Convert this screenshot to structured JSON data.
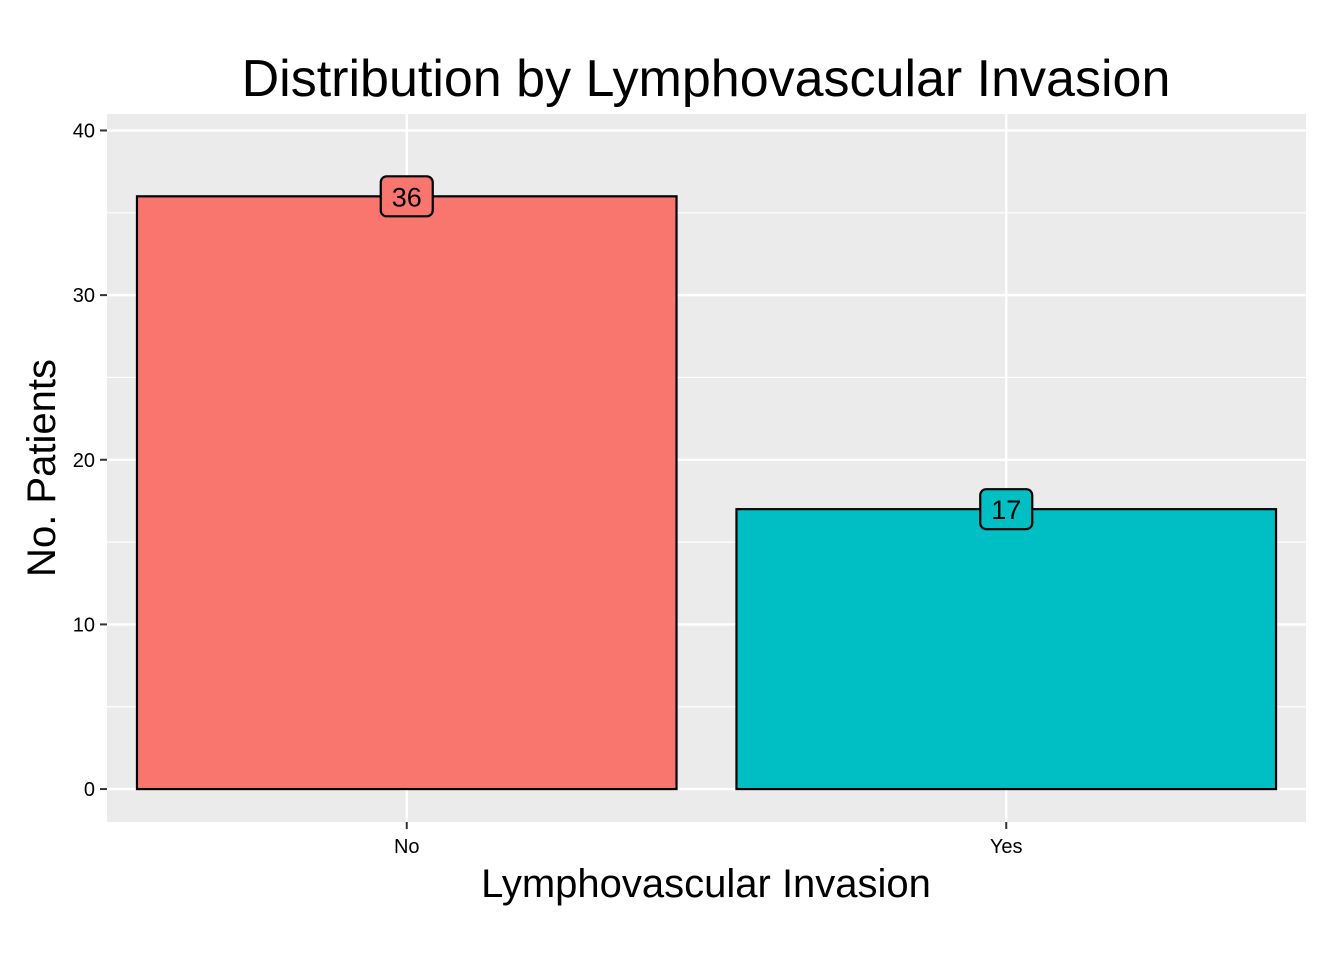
{
  "chart_data": {
    "type": "bar",
    "title": "Distribution by Lymphovascular Invasion",
    "xlabel": "Lymphovascular Invasion",
    "ylabel": "No. Patients",
    "categories": [
      "No",
      "Yes"
    ],
    "values": [
      36,
      17
    ],
    "data_labels": [
      "36",
      "17"
    ],
    "ylim": [
      -2,
      41
    ],
    "yticks": [
      0,
      10,
      20,
      30,
      40
    ],
    "ytick_labels": [
      "0",
      "10",
      "20",
      "30",
      "40"
    ],
    "colors": [
      "#F8766D",
      "#00BFC4"
    ],
    "bar_outline_color": "#000000",
    "panel_background": "#EBEBEB",
    "grid_color": "#FFFFFF",
    "grid": true,
    "legend": "none"
  }
}
